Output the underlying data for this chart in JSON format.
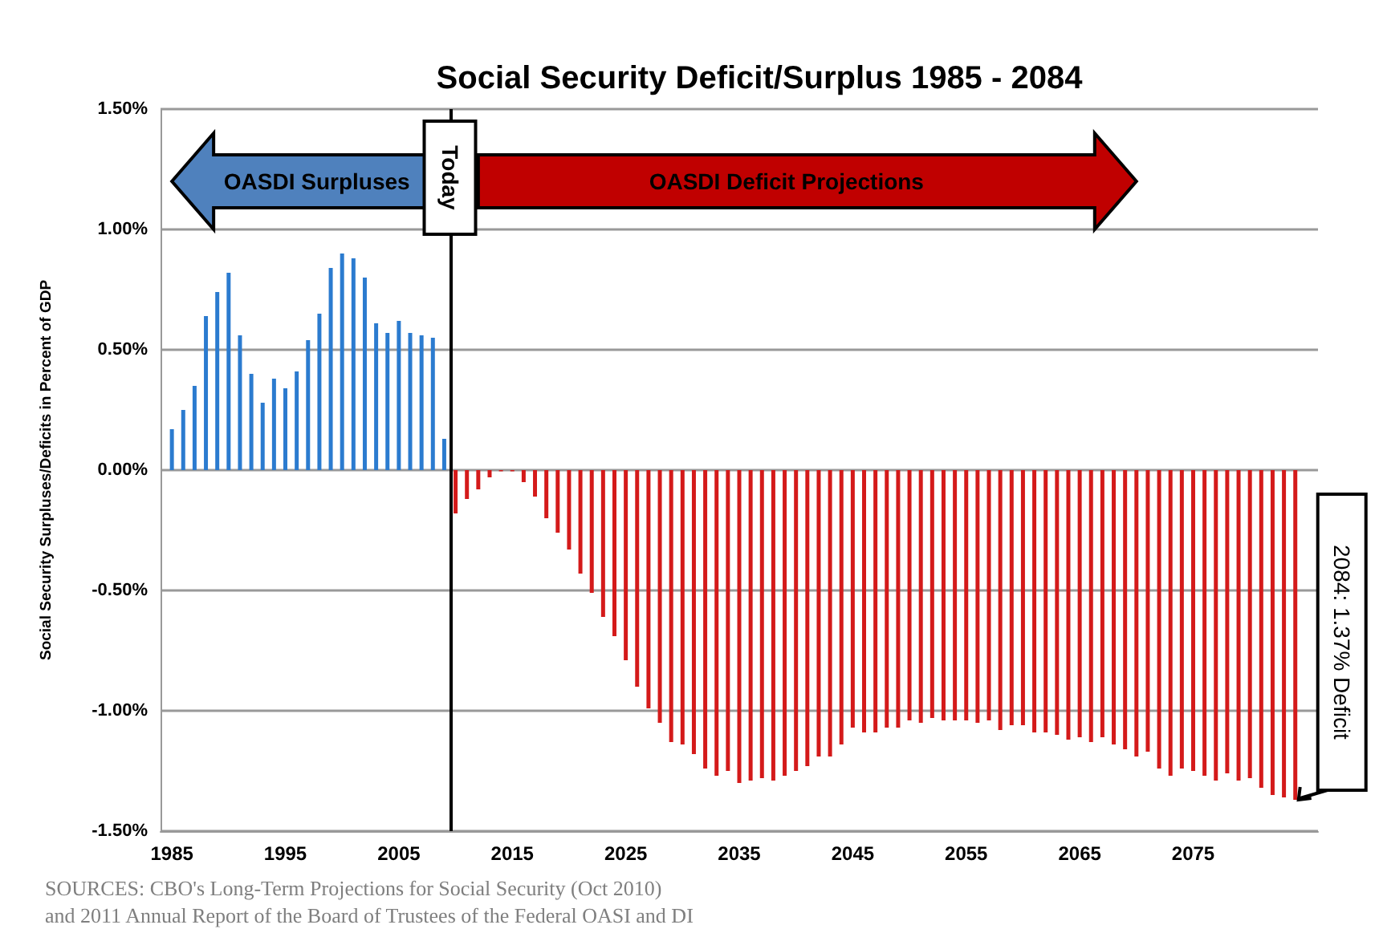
{
  "chart_data": {
    "type": "bar",
    "title": "Social Security Deficit/Surplus 1985 - 2084",
    "ylabel": "Social Security Surpluses/Deficits in Percent of GDP",
    "xlim": [
      1984,
      2086
    ],
    "xticks": [
      1985,
      1995,
      2005,
      2015,
      2025,
      2035,
      2045,
      2055,
      2065,
      2075
    ],
    "ylim": [
      -1.5,
      1.5
    ],
    "yticks": [
      {
        "value": -1.5,
        "label": "-1.50%"
      },
      {
        "value": -1,
        "label": "-1.00%"
      },
      {
        "value": -0.5,
        "label": "-0.50%"
      },
      {
        "value": 0,
        "label": "0.00%"
      },
      {
        "value": 0.5,
        "label": "0.50%"
      },
      {
        "value": 1,
        "label": "1.00%"
      },
      {
        "value": 1.5,
        "label": "1.50%"
      }
    ],
    "grid": "y",
    "series": [
      {
        "color": "#2b7bcf",
        "x": [
          1985,
          1986,
          1987,
          1988,
          1989,
          1990,
          1991,
          1992,
          1993,
          1994,
          1995,
          1996,
          1997,
          1998,
          1999,
          2000,
          2001,
          2002,
          2003,
          2004,
          2005,
          2006,
          2007,
          2008,
          2009
        ],
        "values": [
          0.17,
          0.25,
          0.35,
          0.64,
          0.74,
          0.82,
          0.56,
          0.4,
          0.28,
          0.38,
          0.34,
          0.41,
          0.54,
          0.65,
          0.84,
          0.9,
          0.88,
          0.8,
          0.61,
          0.57,
          0.62,
          0.57,
          0.56,
          0.55,
          0.13
        ]
      },
      {
        "color": "#d41a1a",
        "x": [
          2010,
          2011,
          2012,
          2013,
          2014,
          2015,
          2016,
          2017,
          2018,
          2019,
          2020,
          2021,
          2022,
          2023,
          2024,
          2025,
          2026,
          2027,
          2028,
          2029,
          2030,
          2031,
          2032,
          2033,
          2034,
          2035,
          2036,
          2037,
          2038,
          2039,
          2040,
          2041,
          2042,
          2043,
          2044,
          2045,
          2046,
          2047,
          2048,
          2049,
          2050,
          2051,
          2052,
          2053,
          2054,
          2055,
          2056,
          2057,
          2058,
          2059,
          2060,
          2061,
          2062,
          2063,
          2064,
          2065,
          2066,
          2067,
          2068,
          2069,
          2070,
          2071,
          2072,
          2073,
          2074,
          2075,
          2076,
          2077,
          2078,
          2079,
          2080,
          2081,
          2082,
          2083,
          2084
        ],
        "values": [
          -0.18,
          -0.12,
          -0.08,
          -0.03,
          -0.005,
          -0.005,
          -0.05,
          -0.11,
          -0.2,
          -0.26,
          -0.33,
          -0.43,
          -0.51,
          -0.61,
          -0.69,
          -0.79,
          -0.9,
          -0.99,
          -1.05,
          -1.13,
          -1.14,
          -1.18,
          -1.24,
          -1.27,
          -1.25,
          -1.3,
          -1.29,
          -1.28,
          -1.29,
          -1.27,
          -1.25,
          -1.23,
          -1.19,
          -1.19,
          -1.14,
          -1.07,
          -1.09,
          -1.09,
          -1.07,
          -1.07,
          -1.04,
          -1.05,
          -1.03,
          -1.04,
          -1.04,
          -1.04,
          -1.05,
          -1.04,
          -1.08,
          -1.06,
          -1.06,
          -1.09,
          -1.09,
          -1.1,
          -1.12,
          -1.11,
          -1.13,
          -1.11,
          -1.14,
          -1.16,
          -1.19,
          -1.17,
          -1.24,
          -1.27,
          -1.24,
          -1.25,
          -1.27,
          -1.29,
          -1.26,
          -1.29,
          -1.28,
          -1.32,
          -1.35,
          -1.36,
          -1.37
        ]
      }
    ],
    "ref_lines": [
      {
        "axis": "x",
        "value": 2009.5,
        "label": "Today",
        "color": "#000000"
      }
    ],
    "annotations": [
      "OASDI Surpluses",
      "OASDI Deficit Projections",
      "2084: 1.37% Deficit",
      "SOURCES: CBO's Long-Term Projections for Social Security (Oct 2010)\nand 2011 Annual Report of the Board of Trustees of the Federal OASI and DI"
    ]
  }
}
